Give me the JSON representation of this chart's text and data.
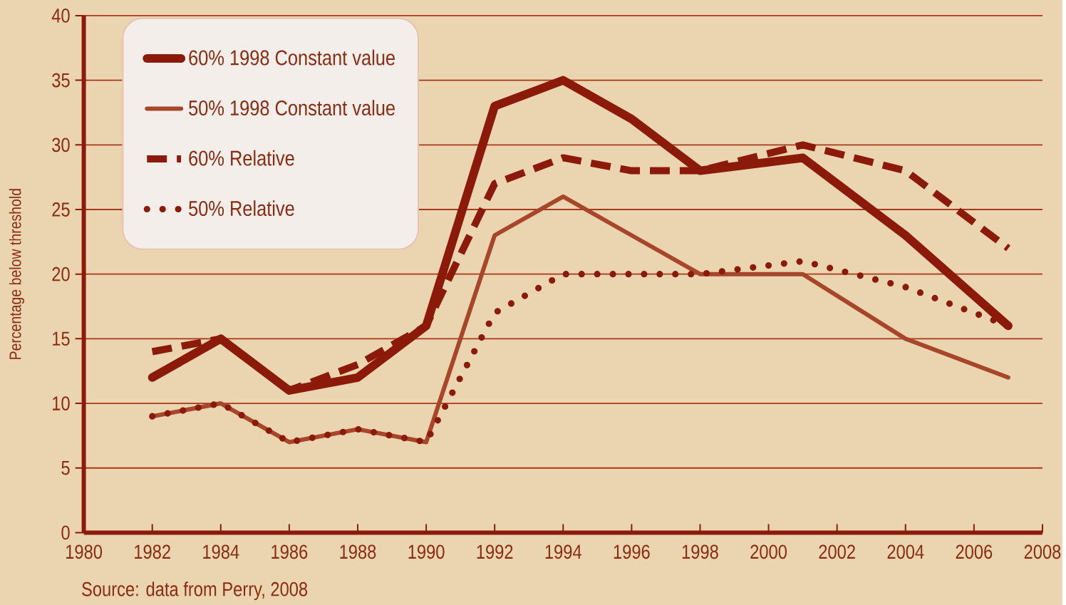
{
  "chart_data": {
    "type": "line",
    "ylabel": "Percentage below threshold",
    "annotations": [
      "Source: data from Perry, 2008"
    ],
    "xlim": [
      1980,
      2008
    ],
    "xticks": [
      1980,
      1982,
      1984,
      1986,
      1988,
      1990,
      1992,
      1994,
      1996,
      1998,
      2000,
      2002,
      2004,
      2006,
      2008
    ],
    "ylim": [
      0,
      40
    ],
    "yticks": [
      0,
      5,
      10,
      15,
      20,
      25,
      30,
      35,
      40
    ],
    "grid": "y",
    "legend": "top left",
    "x": [
      1982,
      1984,
      1986,
      1988,
      1990,
      1992,
      1994,
      1996,
      1998,
      2001,
      2004,
      2007
    ],
    "series": [
      {
        "name": "60% 1998 Constant value",
        "color": "#8b1a0a",
        "line_style": "solid",
        "values": [
          12,
          15,
          11,
          12,
          16,
          33,
          35,
          32,
          28,
          29,
          23,
          16
        ]
      },
      {
        "name": "50% 1998 Constant value",
        "color": "#a8462c",
        "line_style": "solid",
        "values": [
          9,
          10,
          7,
          8,
          7,
          23,
          26,
          23,
          20,
          20,
          15,
          12
        ]
      },
      {
        "name": "60% Relative",
        "color": "#8b1a0a",
        "line_style": "dashed",
        "values": [
          14,
          15,
          11,
          13,
          16,
          27,
          29,
          28,
          28,
          30,
          28,
          22
        ]
      },
      {
        "name": "50% Relative",
        "color": "#8b1a0a",
        "line_style": "dotted",
        "values": [
          9,
          10,
          7,
          8,
          7,
          17,
          20,
          20,
          20,
          21,
          19,
          16
        ]
      }
    ]
  }
}
